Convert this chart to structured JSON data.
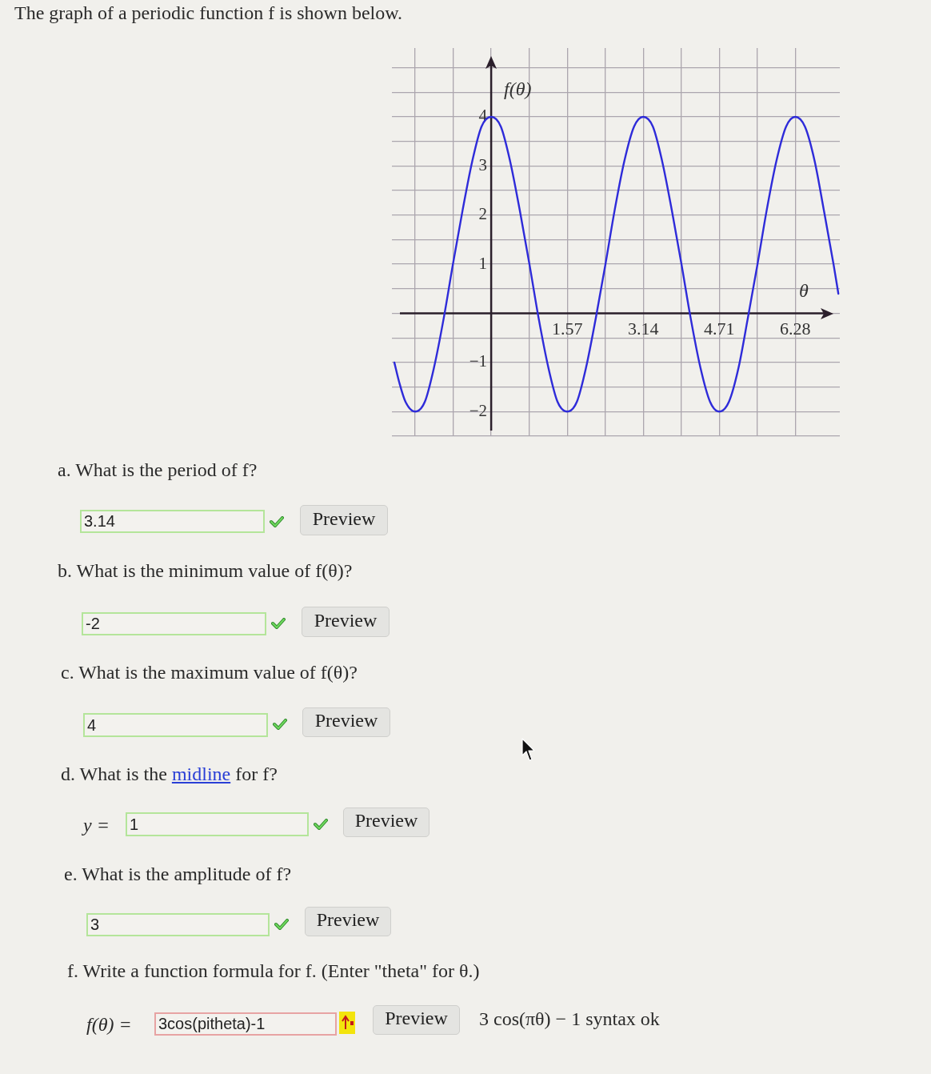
{
  "chart_data": {
    "type": "line",
    "title": "The graph of a periodic function f is shown below.",
    "xlabel": "θ",
    "ylabel": "f(θ)",
    "x": [
      -2.0,
      -1.9,
      -1.77,
      -1.57,
      -1.37,
      -1.18,
      -0.98,
      -0.79,
      -0.59,
      -0.39,
      -0.2,
      0,
      0.2,
      0.39,
      0.59,
      0.79,
      0.98,
      1.18,
      1.37,
      1.57,
      1.77,
      1.96,
      2.16,
      2.36,
      2.55,
      2.75,
      2.95,
      3.14,
      3.34,
      3.53,
      3.73,
      3.93,
      4.12,
      4.32,
      4.52,
      4.71,
      4.91,
      5.11,
      5.3,
      5.5,
      5.69,
      5.89,
      6.09,
      6.28,
      6.48,
      6.68,
      6.87,
      7.07,
      7.17
    ],
    "values": [
      -1.0,
      -1.4,
      -1.8,
      -2,
      -1.8,
      -1.1,
      -0.1,
      1,
      2.1,
      3.1,
      3.8,
      4,
      3.8,
      3.1,
      2.1,
      1,
      -0.1,
      -1.1,
      -1.8,
      -2,
      -1.8,
      -1.1,
      -0.1,
      1,
      2.1,
      3.1,
      3.8,
      4,
      3.8,
      3.1,
      2.1,
      1,
      -0.1,
      -1.1,
      -1.8,
      -2,
      -1.8,
      -1.1,
      -0.1,
      1,
      2.1,
      3.1,
      3.8,
      4,
      3.8,
      3.1,
      2.1,
      1,
      0.4
    ],
    "color": "#2e2bd9",
    "xlim": [
      -2.05,
      7.2
    ],
    "ylim": [
      -2.5,
      5.4
    ],
    "xticks": [
      {
        "value": -1.57,
        "label": null
      },
      {
        "value": -0.785,
        "label": null
      },
      {
        "value": 0,
        "label": null
      },
      {
        "value": 0.785,
        "label": null
      },
      1.57,
      {
        "value": 2.355,
        "label": null
      },
      3.14,
      {
        "value": 3.925,
        "label": null
      },
      4.71,
      {
        "value": 5.495,
        "label": null
      },
      6.28
    ],
    "yticks": [
      {
        "value": -2.5,
        "label": null
      },
      {
        "value": -2,
        "label": "−2"
      },
      {
        "value": -1.5,
        "label": null
      },
      {
        "value": -1,
        "label": "−1"
      },
      {
        "value": -0.5,
        "label": null
      },
      {
        "value": 0,
        "label": null
      },
      {
        "value": 0.5,
        "label": null
      },
      1,
      {
        "value": 1.5,
        "label": null
      },
      2,
      {
        "value": 2.5,
        "label": null
      },
      3,
      {
        "value": 3.5,
        "label": null
      },
      4,
      {
        "value": 4.5,
        "label": null
      },
      {
        "value": 5,
        "label": null
      }
    ],
    "grid": true,
    "annotations": [
      "a. What is the period of f?",
      "3.14",
      "Preview",
      "b. What is the minimum value of f(θ)?",
      "-2",
      "Preview",
      "c. What is the maximum value of f(θ)?",
      "4",
      "Preview",
      "d. What is the",
      "midline",
      "for f?",
      "y =",
      "1",
      "Preview",
      "e. What is the amplitude of f?",
      "3",
      "Preview",
      "f. Write a function formula for f. (Enter \"theta\" for θ.)",
      "f(θ) =",
      "3cos(pitheta)-1",
      "Preview",
      "3 cos(πθ) − 1 syntax ok"
    ]
  }
}
